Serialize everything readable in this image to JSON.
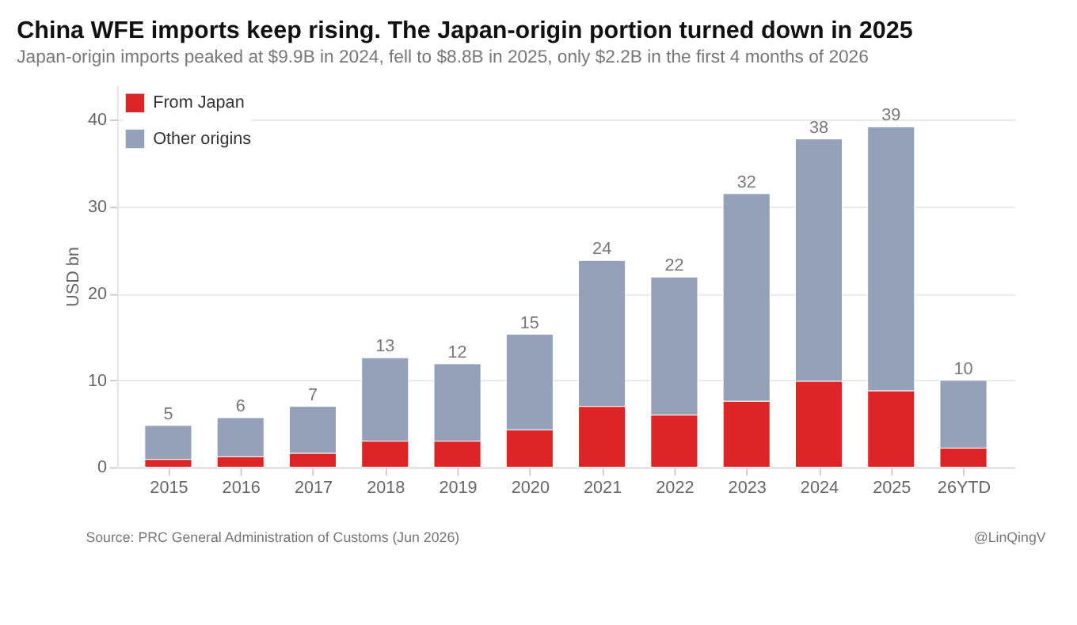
{
  "chart_data": {
    "type": "bar",
    "stacked": true,
    "title": "China WFE imports keep rising. The Japan-origin portion turned down in 2025",
    "subtitle": "Japan-origin imports peaked at $9.9B in 2024, fell to $8.8B in 2025, only $2.2B in the first 4 months of 2026",
    "ylabel": "USD bn",
    "categories": [
      "2015",
      "2016",
      "2017",
      "2018",
      "2019",
      "2020",
      "2021",
      "2022",
      "2023",
      "2024",
      "2025",
      "26YTD"
    ],
    "series": [
      {
        "name": "From Japan",
        "color": "#dd2527",
        "values": [
          0.9,
          1.2,
          1.6,
          3.0,
          3.0,
          4.3,
          7.0,
          6.0,
          7.6,
          9.9,
          8.8,
          2.2
        ]
      },
      {
        "name": "Other origins",
        "color": "#94a1b8",
        "values": [
          3.9,
          4.5,
          5.4,
          9.6,
          8.9,
          11.0,
          16.8,
          15.9,
          23.9,
          27.9,
          30.4,
          7.8
        ]
      }
    ],
    "totals": [
      "5",
      "6",
      "7",
      "13",
      "12",
      "15",
      "24",
      "22",
      "32",
      "38",
      "39",
      "10"
    ],
    "ylim": [
      0,
      44
    ],
    "yticks": [
      0,
      10,
      20,
      30,
      40
    ],
    "grid": "y",
    "legend": "top left",
    "annotations": [
      "Source: PRC General Administration of Customs (Jun 2026)",
      "@LinQingV"
    ]
  }
}
